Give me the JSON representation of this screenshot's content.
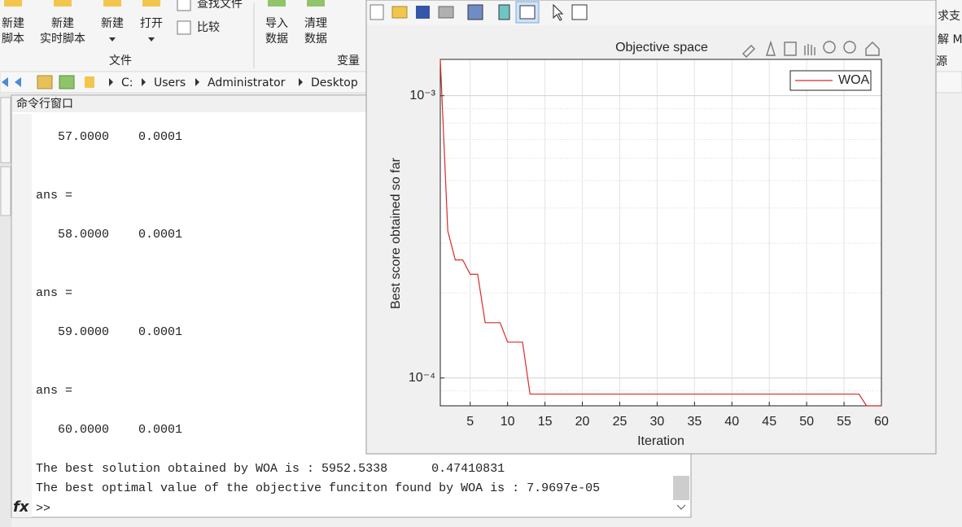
{
  "toolstrip": {
    "buttons": [
      [
        "新建",
        "脚本"
      ],
      [
        "新建",
        "实时脚本"
      ],
      [
        "新建"
      ],
      [
        "打开"
      ],
      [
        "导入",
        "数据"
      ],
      [
        "清理",
        "数据"
      ]
    ],
    "small_buttons": [
      "查找文件",
      "比较"
    ],
    "sections": [
      "文件",
      "变量"
    ],
    "right_fragments": [
      "求支",
      "解 M",
      "源"
    ]
  },
  "address_bar": {
    "path": [
      "C:",
      "Users",
      "Administrator",
      "Desktop"
    ]
  },
  "command_window": {
    "title": "命令行窗口",
    "lines": [
      "   57.0000    0.0001",
      "ans =",
      "   58.0000    0.0001",
      "ans =",
      "   59.0000    0.0001",
      "ans =",
      "   60.0000    0.0001",
      "The best solution obtained by WOA is : 5952.5338      0.47410831",
      "The best optimal value of the objective funciton found by WOA is : 7.9697e-05"
    ],
    "prompt": ">>"
  },
  "chart_data": {
    "type": "line",
    "title": "Objective space",
    "xlabel": "Iteration",
    "ylabel": "Best score obtained so far",
    "x": [
      1,
      2,
      3,
      4,
      5,
      6,
      7,
      8,
      9,
      10,
      11,
      12,
      13,
      14,
      15,
      16,
      17,
      18,
      19,
      20,
      21,
      22,
      23,
      24,
      25,
      26,
      27,
      28,
      29,
      30,
      31,
      32,
      33,
      34,
      35,
      36,
      37,
      38,
      39,
      40,
      41,
      42,
      43,
      44,
      45,
      46,
      47,
      48,
      49,
      50,
      51,
      52,
      53,
      54,
      55,
      56,
      57,
      58,
      59,
      60
    ],
    "series": [
      {
        "name": "WOA",
        "color": "#d92a2a",
        "values": [
          0.001345,
          0.000332,
          0.000262,
          0.000262,
          0.000233,
          0.000233,
          0.000157,
          0.000157,
          0.000157,
          0.000134,
          0.000134,
          0.000134,
          8.77e-05,
          8.77e-05,
          8.77e-05,
          8.77e-05,
          8.77e-05,
          8.77e-05,
          8.77e-05,
          8.77e-05,
          8.77e-05,
          8.77e-05,
          8.77e-05,
          8.77e-05,
          8.77e-05,
          8.77e-05,
          8.77e-05,
          8.77e-05,
          8.77e-05,
          8.77e-05,
          8.77e-05,
          8.77e-05,
          8.77e-05,
          8.77e-05,
          8.77e-05,
          8.77e-05,
          8.77e-05,
          8.77e-05,
          8.77e-05,
          8.77e-05,
          8.77e-05,
          8.77e-05,
          8.77e-05,
          8.77e-05,
          8.77e-05,
          8.77e-05,
          8.77e-05,
          8.77e-05,
          8.77e-05,
          8.77e-05,
          8.77e-05,
          8.77e-05,
          8.77e-05,
          8.77e-05,
          8.77e-05,
          8.77e-05,
          8.77e-05,
          7.9697e-05,
          7.9697e-05,
          7.9697e-05
        ]
      }
    ],
    "xlim": [
      1,
      60
    ],
    "xticks": [
      5,
      10,
      15,
      20,
      25,
      30,
      35,
      40,
      45,
      50,
      55,
      60
    ],
    "ylim": [
      7.9697e-05,
      0.001345
    ],
    "yticks": [
      {
        "value": 0.0001,
        "label": "10⁻⁴"
      },
      {
        "value": 0.001,
        "label": "10⁻³"
      }
    ],
    "yscale": "log",
    "grid": true,
    "minor_grid": true,
    "legend": "northeast"
  }
}
